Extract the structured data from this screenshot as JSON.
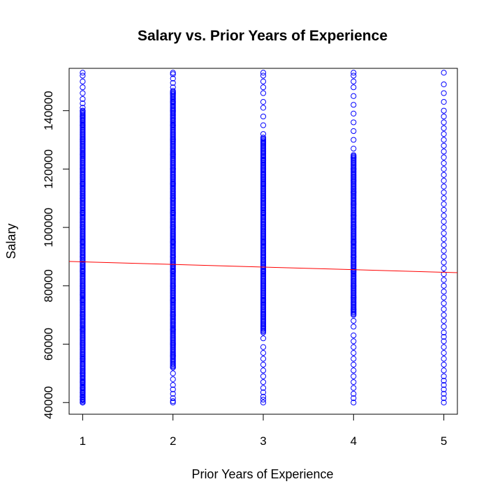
{
  "chart_data": {
    "type": "scatter",
    "title": "Salary vs. Prior Years of Experience",
    "xlabel": "Prior Years of Experience",
    "ylabel": "Salary",
    "xlim": [
      0.85,
      5.15
    ],
    "ylim": [
      36000,
      154500
    ],
    "x_ticks": [
      "1",
      "2",
      "3",
      "4",
      "5"
    ],
    "x_tick_values": [
      1,
      2,
      3,
      4,
      5
    ],
    "y_ticks": [
      "40000",
      "60000",
      "80000",
      "100000",
      "120000",
      "140000"
    ],
    "y_tick_values": [
      40000,
      60000,
      80000,
      100000,
      120000,
      140000
    ],
    "grid": false,
    "legend": "none",
    "point_color": "#0000ff",
    "regression_line": {
      "color": "#ff0000",
      "intercept": 89100,
      "slope": -893
    },
    "series": [
      {
        "x": 1,
        "y_dense_ranges": [
          [
            40000,
            140000
          ]
        ],
        "y_points": [
          40000,
          41000,
          42000,
          43500,
          45000,
          47000,
          50000,
          55000,
          60000,
          65000,
          70000,
          75000,
          77000,
          80000,
          85000,
          90000,
          95000,
          100000,
          105000,
          110000,
          115000,
          120000,
          125000,
          130000,
          135000,
          138000,
          140000,
          141000,
          142500,
          144000,
          146000,
          148000,
          150000,
          152000,
          153000
        ]
      },
      {
        "x": 2,
        "y_dense_ranges": [
          [
            52000,
            147000
          ]
        ],
        "y_points": [
          40000,
          40500,
          41500,
          43000,
          44500,
          46000,
          48000,
          50000,
          52000,
          56000,
          60000,
          65000,
          70000,
          75000,
          80000,
          85000,
          90000,
          95000,
          100000,
          105000,
          110000,
          115000,
          120000,
          125000,
          130000,
          135000,
          140000,
          143000,
          146000,
          148000,
          149500,
          151000,
          152500,
          153000
        ]
      },
      {
        "x": 3,
        "y_dense_ranges": [
          [
            64000,
            131000
          ]
        ],
        "y_points": [
          40000,
          41000,
          42000,
          43500,
          45000,
          47000,
          49000,
          51000,
          53000,
          55000,
          57000,
          59000,
          62000,
          66000,
          70000,
          75000,
          80000,
          85000,
          90000,
          95000,
          100000,
          105000,
          110000,
          115000,
          118000,
          120000,
          123000,
          126000,
          129000,
          132000,
          135000,
          138000,
          141000,
          143000,
          146000,
          148000,
          150000,
          152000,
          153000
        ]
      },
      {
        "x": 4,
        "y_dense_ranges": [
          [
            70000,
            125000
          ]
        ],
        "y_points": [
          40000,
          41500,
          43000,
          45000,
          47000,
          49000,
          51000,
          53000,
          55000,
          57000,
          59000,
          61000,
          63000,
          66000,
          68000,
          72000,
          76000,
          80000,
          85000,
          90000,
          95000,
          100000,
          104000,
          108000,
          112000,
          116000,
          120000,
          124000,
          127000,
          130000,
          133000,
          136000,
          139000,
          142000,
          145000,
          148000,
          150000,
          152000,
          153000
        ]
      },
      {
        "x": 5,
        "y_dense_ranges": [],
        "y_points": [
          40000,
          41500,
          43000,
          44500,
          46000,
          47500,
          49000,
          51000,
          53000,
          55000,
          57000,
          59000,
          61000,
          62500,
          64000,
          66000,
          68000,
          70000,
          72000,
          74000,
          76000,
          78000,
          80000,
          82000,
          84000,
          86000,
          88000,
          90000,
          92000,
          94000,
          96000,
          98000,
          100000,
          102000,
          104000,
          106000,
          108000,
          110000,
          112000,
          114000,
          116000,
          118000,
          120000,
          122000,
          124000,
          126000,
          128000,
          130000,
          132000,
          134000,
          136000,
          138000,
          140000,
          143000,
          146000,
          149000,
          153000
        ]
      }
    ]
  }
}
